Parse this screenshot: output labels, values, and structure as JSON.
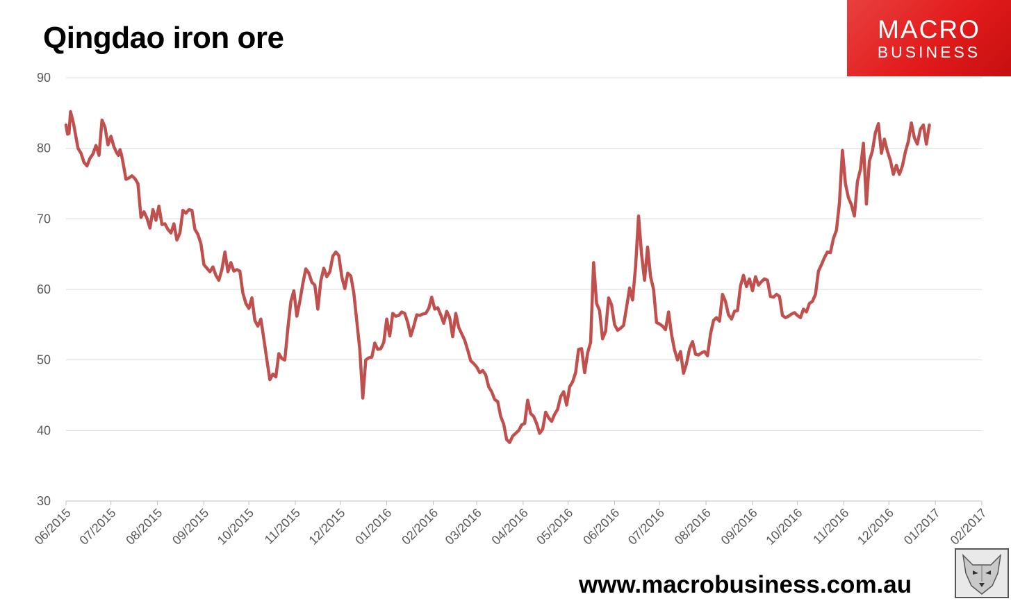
{
  "title": "Qingdao iron ore",
  "logo": {
    "line1": "MACRO",
    "line2": "BUSINESS",
    "bg_color": "#e21b1b"
  },
  "website": "www.macrobusiness.com.au",
  "chart_data": {
    "type": "line",
    "title": "Qingdao iron ore",
    "xlabel": "",
    "ylabel": "",
    "ylim": [
      30,
      90
    ],
    "yticks": [
      30,
      40,
      50,
      60,
      70,
      80,
      90
    ],
    "xlim": [
      "2015-06-01",
      "2017-02-01"
    ],
    "xticks": [
      "06/2015",
      "07/2015",
      "08/2015",
      "09/2015",
      "10/2015",
      "11/2015",
      "12/2015",
      "01/2016",
      "02/2016",
      "03/2016",
      "04/2016",
      "05/2016",
      "06/2016",
      "07/2016",
      "08/2016",
      "09/2016",
      "10/2016",
      "11/2016",
      "12/2016",
      "01/2017",
      "02/2017"
    ],
    "grid": true,
    "line_color": "#c0504d",
    "series": [
      {
        "x": [
          "2015-06-01",
          "2015-06-02",
          "2015-06-03",
          "2015-06-04",
          "2015-06-06",
          "2015-06-09",
          "2015-06-11",
          "2015-06-13",
          "2015-06-15",
          "2015-06-17",
          "2015-06-19",
          "2015-06-21",
          "2015-06-23",
          "2015-06-25",
          "2015-06-27",
          "2015-06-29",
          "2015-07-01",
          "2015-07-03",
          "2015-07-05",
          "2015-07-06",
          "2015-07-07",
          "2015-07-08",
          "2015-07-09",
          "2015-07-11",
          "2015-07-13",
          "2015-07-15",
          "2015-07-17",
          "2015-07-19",
          "2015-07-21",
          "2015-07-23",
          "2015-07-25",
          "2015-07-27",
          "2015-07-29",
          "2015-07-31",
          "2015-08-02",
          "2015-08-04",
          "2015-08-06",
          "2015-08-08",
          "2015-08-10",
          "2015-08-12",
          "2015-08-14",
          "2015-08-16",
          "2015-08-18",
          "2015-08-20",
          "2015-08-22",
          "2015-08-24",
          "2015-08-26",
          "2015-08-28",
          "2015-08-30",
          "2015-09-01",
          "2015-09-03",
          "2015-09-05",
          "2015-09-07",
          "2015-09-09",
          "2015-09-11",
          "2015-09-13",
          "2015-09-15",
          "2015-09-17",
          "2015-09-19",
          "2015-09-21",
          "2015-09-23",
          "2015-09-25",
          "2015-09-27",
          "2015-09-29",
          "2015-10-01",
          "2015-10-03",
          "2015-10-05",
          "2015-10-07",
          "2015-10-09",
          "2015-10-11",
          "2015-10-13",
          "2015-10-15",
          "2015-10-17",
          "2015-10-19",
          "2015-10-21",
          "2015-10-23",
          "2015-10-25",
          "2015-10-27",
          "2015-10-29",
          "2015-10-31",
          "2015-11-02",
          "2015-11-04",
          "2015-11-06",
          "2015-11-08",
          "2015-11-10",
          "2015-11-12",
          "2015-11-14",
          "2015-11-16",
          "2015-11-18",
          "2015-11-20",
          "2015-11-22",
          "2015-11-24",
          "2015-11-26",
          "2015-11-28",
          "2015-11-30",
          "2015-12-02",
          "2015-12-04",
          "2015-12-06",
          "2015-12-08",
          "2015-12-10",
          "2015-12-12",
          "2015-12-14",
          "2015-12-16",
          "2015-12-18",
          "2015-12-20",
          "2015-12-22",
          "2015-12-24",
          "2015-12-26",
          "2015-12-28",
          "2015-12-30",
          "2016-01-01",
          "2016-01-03",
          "2016-01-05",
          "2016-01-07",
          "2016-01-09",
          "2016-01-11",
          "2016-01-13",
          "2016-01-15",
          "2016-01-17",
          "2016-01-19",
          "2016-01-21",
          "2016-01-23",
          "2016-01-25",
          "2016-01-27",
          "2016-01-29",
          "2016-01-31",
          "2016-02-02",
          "2016-02-04",
          "2016-02-06",
          "2016-02-08",
          "2016-02-10",
          "2016-02-12",
          "2016-02-14",
          "2016-02-16",
          "2016-02-18",
          "2016-02-20",
          "2016-02-22",
          "2016-02-24",
          "2016-02-26",
          "2016-02-28",
          "2016-03-01",
          "2016-03-03",
          "2016-03-05",
          "2016-03-07",
          "2016-03-09",
          "2016-03-11",
          "2016-03-13",
          "2016-03-15",
          "2016-03-17",
          "2016-03-19",
          "2016-03-21",
          "2016-03-23",
          "2016-03-25",
          "2016-03-27",
          "2016-03-29",
          "2016-03-31",
          "2016-04-02",
          "2016-04-04",
          "2016-04-06",
          "2016-04-08",
          "2016-04-10",
          "2016-04-12",
          "2016-04-14",
          "2016-04-16",
          "2016-04-18",
          "2016-04-20",
          "2016-04-22",
          "2016-04-24",
          "2016-04-26",
          "2016-04-28",
          "2016-04-30",
          "2016-05-02",
          "2016-05-04",
          "2016-05-06",
          "2016-05-08",
          "2016-05-10",
          "2016-05-12",
          "2016-05-14",
          "2016-05-16",
          "2016-05-18",
          "2016-05-20",
          "2016-05-22",
          "2016-05-24",
          "2016-05-26",
          "2016-05-28",
          "2016-05-30",
          "2016-06-01",
          "2016-06-03",
          "2016-06-05",
          "2016-06-07",
          "2016-06-09",
          "2016-06-11",
          "2016-06-13",
          "2016-06-15",
          "2016-06-17",
          "2016-06-19",
          "2016-06-21",
          "2016-06-23",
          "2016-06-25",
          "2016-06-27",
          "2016-06-29",
          "2016-07-01",
          "2016-07-03",
          "2016-07-05",
          "2016-07-07",
          "2016-07-09",
          "2016-07-11",
          "2016-07-13",
          "2016-07-15",
          "2016-07-17",
          "2016-07-19",
          "2016-07-21",
          "2016-07-23",
          "2016-07-25",
          "2016-07-27",
          "2016-07-29",
          "2016-07-31",
          "2016-08-02",
          "2016-08-04",
          "2016-08-06",
          "2016-08-08",
          "2016-08-10",
          "2016-08-12",
          "2016-08-14",
          "2016-08-16",
          "2016-08-18",
          "2016-08-20",
          "2016-08-22",
          "2016-08-24",
          "2016-08-26",
          "2016-08-28",
          "2016-08-30",
          "2016-09-01",
          "2016-09-03",
          "2016-09-05",
          "2016-09-07",
          "2016-09-09",
          "2016-09-11",
          "2016-09-13",
          "2016-09-15",
          "2016-09-17",
          "2016-09-19",
          "2016-09-21",
          "2016-09-23",
          "2016-09-25",
          "2016-09-27",
          "2016-09-29",
          "2016-10-01",
          "2016-10-03",
          "2016-10-05",
          "2016-10-07",
          "2016-10-09",
          "2016-10-11",
          "2016-10-13",
          "2016-10-15",
          "2016-10-17",
          "2016-10-19",
          "2016-10-21",
          "2016-10-23",
          "2016-10-25",
          "2016-10-27",
          "2016-10-29",
          "2016-10-31",
          "2016-11-02",
          "2016-11-04",
          "2016-11-06",
          "2016-11-08",
          "2016-11-10",
          "2016-11-12",
          "2016-11-14",
          "2016-11-16",
          "2016-11-18",
          "2016-11-20",
          "2016-11-22",
          "2016-11-24",
          "2016-11-26",
          "2016-11-28",
          "2016-11-30",
          "2016-12-02",
          "2016-12-04",
          "2016-12-06",
          "2016-12-08",
          "2016-12-10",
          "2016-12-12",
          "2016-12-14",
          "2016-12-16",
          "2016-12-18",
          "2016-12-20",
          "2016-12-22",
          "2016-12-24",
          "2016-12-26",
          "2016-12-28"
        ],
        "y": [
          83.3,
          82.0,
          82.1,
          85.2,
          83.5,
          80.0,
          79.3,
          78.0,
          77.5,
          78.6,
          79.2,
          80.4,
          79.0,
          84.0,
          83.0,
          80.5,
          81.7,
          80.2,
          79.3,
          79.0,
          79.8,
          79.1,
          78.0,
          75.6,
          75.8,
          76.1,
          75.7,
          75.0,
          70.2,
          71.0,
          70.1,
          68.7,
          71.3,
          69.8,
          71.8,
          69.2,
          69.3,
          68.5,
          68.0,
          69.3,
          67.0,
          68.0,
          71.2,
          70.8,
          71.3,
          71.2,
          68.5,
          67.8,
          66.5,
          63.5,
          63.0,
          62.5,
          63.2,
          62.0,
          61.3,
          62.8,
          65.3,
          62.5,
          63.8,
          62.6,
          62.8,
          62.6,
          59.5,
          58.0,
          57.3,
          58.8,
          55.6,
          54.8,
          55.8,
          53.0,
          50.0,
          47.2,
          48.0,
          47.6,
          50.9,
          50.2,
          50.0,
          54.5,
          58.3,
          59.8,
          56.2,
          58.3,
          60.8,
          62.9,
          62.3,
          61.0,
          60.6,
          57.2,
          61.2,
          63.0,
          61.8,
          62.5,
          64.7,
          65.3,
          64.8,
          61.8,
          60.1,
          62.3,
          61.9,
          59.5,
          55.5,
          51.5,
          44.6,
          50.0,
          50.3,
          50.4,
          52.4,
          51.5,
          51.6,
          52.5,
          55.8,
          53.4,
          56.6,
          56.2,
          56.3,
          56.8,
          56.6,
          55.3,
          53.4,
          54.8,
          56.4,
          56.3,
          56.5,
          56.6,
          57.3,
          58.9,
          57.2,
          57.4,
          56.4,
          55.2,
          56.9,
          56.0,
          53.3,
          56.6,
          54.6,
          53.7,
          52.8,
          51.4,
          49.9,
          49.5,
          49.0,
          48.2,
          48.5,
          47.9,
          46.2,
          45.5,
          44.4,
          44.1,
          42.0,
          40.9,
          38.7,
          38.3,
          39.2,
          39.6,
          40.0,
          40.8,
          41.0,
          44.3,
          42.4,
          42.0,
          41.0,
          39.6,
          40.2,
          42.6,
          41.8,
          41.3,
          42.3,
          43.0,
          44.8,
          45.5,
          43.6,
          46.2,
          46.9,
          48.2,
          51.5,
          51.6,
          48.2,
          51.0,
          52.5,
          63.8,
          58.0,
          57.0,
          53.0,
          54.1,
          58.8,
          57.8,
          55.0,
          54.2,
          54.5,
          54.9,
          57.5,
          60.2,
          58.5,
          63.2,
          70.4,
          65.0,
          61.3,
          66.0,
          61.8,
          60.0,
          55.3,
          55.1,
          54.8,
          54.3,
          56.8,
          53.6,
          51.4,
          50.0,
          51.2,
          48.1,
          49.5,
          51.6,
          52.6,
          50.8,
          50.7,
          51.0,
          51.2,
          50.6,
          53.7,
          55.6,
          56.0,
          55.5,
          59.3,
          58.3,
          56.4,
          55.8,
          56.9,
          57.0,
          60.5,
          62.0,
          60.4,
          61.5,
          59.8,
          61.8,
          60.6,
          61.1,
          61.5,
          61.3,
          59.0,
          58.9,
          59.3,
          59.0,
          56.3,
          56.0,
          56.2,
          56.5,
          56.7,
          56.3,
          56.0,
          57.2,
          56.8,
          58.0,
          58.3,
          59.3,
          62.6,
          63.5,
          64.5,
          65.3,
          65.2,
          67.2,
          68.4,
          72.3,
          79.7,
          75.0,
          73.0,
          72.0,
          70.4,
          75.3,
          77.0,
          80.7,
          72.1,
          78.2,
          79.6,
          82.2,
          83.5,
          79.3,
          81.3,
          79.6,
          78.3,
          76.3,
          77.6,
          76.3,
          77.5,
          79.5,
          81.0,
          83.6,
          81.5,
          80.6,
          82.7,
          83.3,
          80.6,
          83.3
        ]
      }
    ]
  }
}
